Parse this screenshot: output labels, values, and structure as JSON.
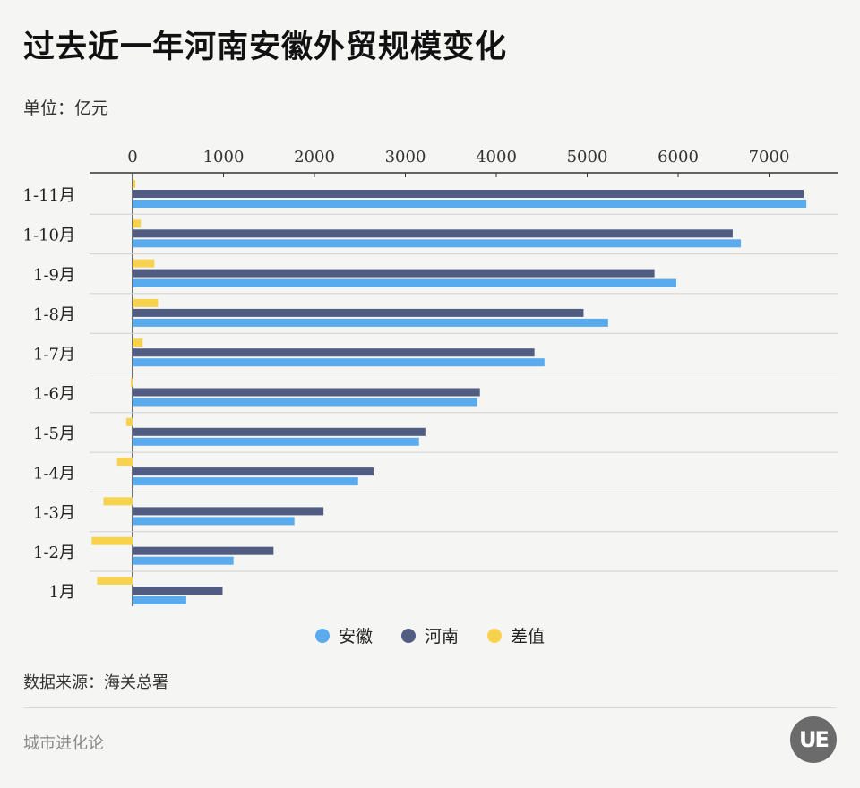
{
  "title": "过去近一年河南安徽外贸规模变化",
  "unit": "单位：亿元",
  "source": "数据来源：海关总署",
  "brand": "城市进化论",
  "logo_text": "UE",
  "colors": {
    "anhui": "#5aabee",
    "henan": "#515c82",
    "diff": "#f7d24e",
    "grid": "#d0d0d0",
    "axis": "#333333"
  },
  "chart_data": {
    "type": "bar",
    "orientation": "horizontal",
    "title": "过去近一年河南安徽外贸规模变化",
    "xlabel": "",
    "ylabel": "",
    "xlim": [
      -450,
      7800
    ],
    "ticks": [
      0,
      1000,
      2000,
      3000,
      4000,
      5000,
      6000,
      7000
    ],
    "tick_labels": [
      "0",
      "1000",
      "2000",
      "3000",
      "4000",
      "5000",
      "6000",
      "7000"
    ],
    "categories": [
      "1-11月",
      "1-10月",
      "1-9月",
      "1-8月",
      "1-7月",
      "1-6月",
      "1-5月",
      "1-4月",
      "1-3月",
      "1-2月",
      "1月"
    ],
    "series": [
      {
        "name": "差值",
        "key": "diff",
        "values": [
          30,
          90,
          240,
          280,
          110,
          -20,
          -70,
          -170,
          -320,
          -450,
          -390
        ]
      },
      {
        "name": "河南",
        "key": "henan",
        "values": [
          7380,
          6600,
          5740,
          4960,
          4420,
          3820,
          3220,
          2650,
          2100,
          1550,
          990
        ]
      },
      {
        "name": "安徽",
        "key": "anhui",
        "values": [
          7410,
          6690,
          5980,
          5230,
          4530,
          3790,
          3150,
          2480,
          1780,
          1110,
          590
        ]
      }
    ],
    "legend": [
      {
        "name": "安徽",
        "key": "anhui"
      },
      {
        "name": "河南",
        "key": "henan"
      },
      {
        "name": "差值",
        "key": "diff"
      }
    ]
  }
}
